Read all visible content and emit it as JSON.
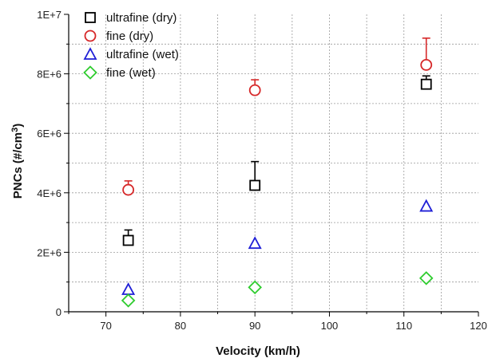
{
  "chart_data": {
    "type": "scatter",
    "title": "",
    "xlabel": "Velocity (km/h)",
    "ylabel_base": "PNCs (#/cm",
    "ylabel_sup": "3",
    "ylabel_end": ")",
    "xlim": [
      65,
      120
    ],
    "ylim": [
      0,
      10000000
    ],
    "x_ticks": [
      70,
      80,
      90,
      100,
      110,
      120
    ],
    "x_tick_labels": [
      "70",
      "80",
      "90",
      "100",
      "110",
      "120"
    ],
    "y_ticks": [
      0,
      2000000,
      4000000,
      6000000,
      8000000,
      10000000
    ],
    "y_tick_labels": [
      "0",
      "2E+6",
      "4E+6",
      "6E+6",
      "8E+6",
      "1E+7"
    ],
    "grid": true,
    "legend_position": "top-left",
    "series": [
      {
        "name": "ultrafine (dry)",
        "marker": "square",
        "color": "#000000",
        "x": [
          73,
          90,
          113
        ],
        "y": [
          2400000,
          4250000,
          7650000
        ],
        "err_upper": [
          350000,
          800000,
          280000
        ]
      },
      {
        "name": "fine (dry)",
        "marker": "circle",
        "color": "#d62728",
        "x": [
          73,
          90,
          113
        ],
        "y": [
          4100000,
          7450000,
          8300000
        ],
        "err_upper": [
          300000,
          350000,
          900000
        ]
      },
      {
        "name": "ultrafine (wet)",
        "marker": "triangle",
        "color": "#1f1fd6",
        "x": [
          73,
          90,
          113
        ],
        "y": [
          750000,
          2300000,
          3550000
        ],
        "err_upper": [
          0,
          0,
          0
        ]
      },
      {
        "name": "fine (wet)",
        "marker": "diamond",
        "color": "#2ecc2e",
        "x": [
          73,
          90,
          113
        ],
        "y": [
          380000,
          820000,
          1130000
        ],
        "err_upper": [
          0,
          0,
          0
        ]
      }
    ]
  }
}
